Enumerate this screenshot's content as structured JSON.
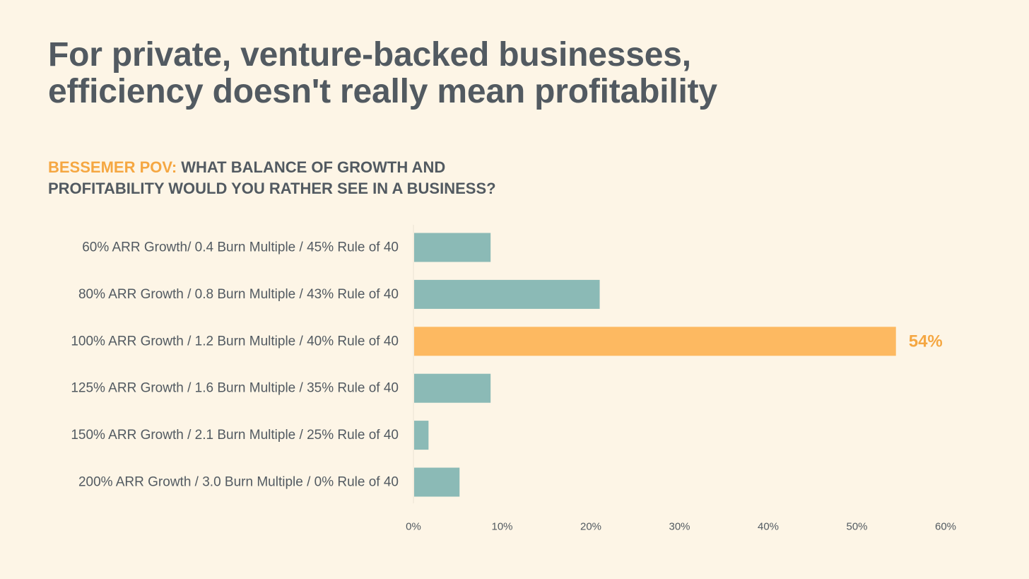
{
  "title_lines": [
    "For private, venture-backed businesses,",
    "efficiency doesn't really mean profitability"
  ],
  "subtitle": {
    "accent": "BESSEMER POV:",
    "line1": " WHAT BALANCE OF GROWTH AND",
    "line2": "PROFITABILITY WOULD YOU RATHER SEE IN A BUSINESS?"
  },
  "colors": {
    "bar": "#8bbab6",
    "highlight": "#fdb961",
    "highlight_label": "#f5a742",
    "text": "#525a61",
    "background": "#fdf5e6"
  },
  "chart_data": {
    "type": "bar",
    "orientation": "horizontal",
    "categories": [
      "60% ARR Growth/ 0.4 Burn Multiple / 45% Rule of 40",
      "80% ARR Growth / 0.8 Burn Multiple / 43% Rule of 40",
      "100% ARR Growth / 1.2 Burn Multiple / 40% Rule of 40",
      "125% ARR Growth / 1.6 Burn Multiple / 35% Rule of 40",
      "150% ARR Growth / 2.1 Burn Multiple / 25% Rule of 40",
      "200% ARR Growth / 3.0 Burn Multiple / 0% Rule of 40"
    ],
    "values": [
      8.7,
      21.0,
      54.4,
      8.7,
      1.7,
      5.2
    ],
    "highlight_index": 2,
    "data_labels": [
      {
        "index": 2,
        "text": "54%"
      }
    ],
    "xlim": [
      0,
      60
    ],
    "xticks": [
      0,
      10,
      20,
      30,
      40,
      50,
      60
    ],
    "xtick_labels": [
      "0%",
      "10%",
      "20%",
      "30%",
      "40%",
      "50%",
      "60%"
    ],
    "grid": false,
    "legend": "none"
  }
}
